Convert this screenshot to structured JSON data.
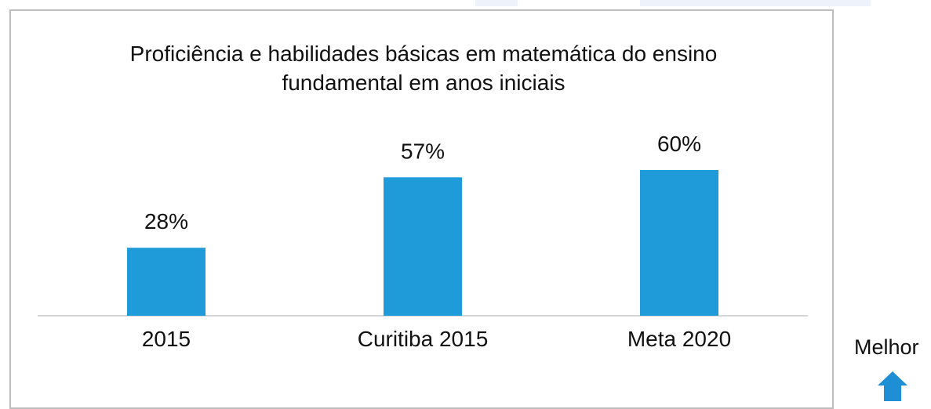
{
  "chart_data": {
    "type": "bar",
    "title": "Proficiência e habilidades básicas em matemática do ensino fundamental em anos iniciais",
    "categories": [
      "2015",
      "Curitiba 2015",
      "Meta 2020"
    ],
    "values": [
      28,
      57,
      60
    ],
    "value_labels": [
      "28%",
      "57%",
      "60%"
    ],
    "color": "#1e9bd8",
    "annotation": "Melhor"
  }
}
